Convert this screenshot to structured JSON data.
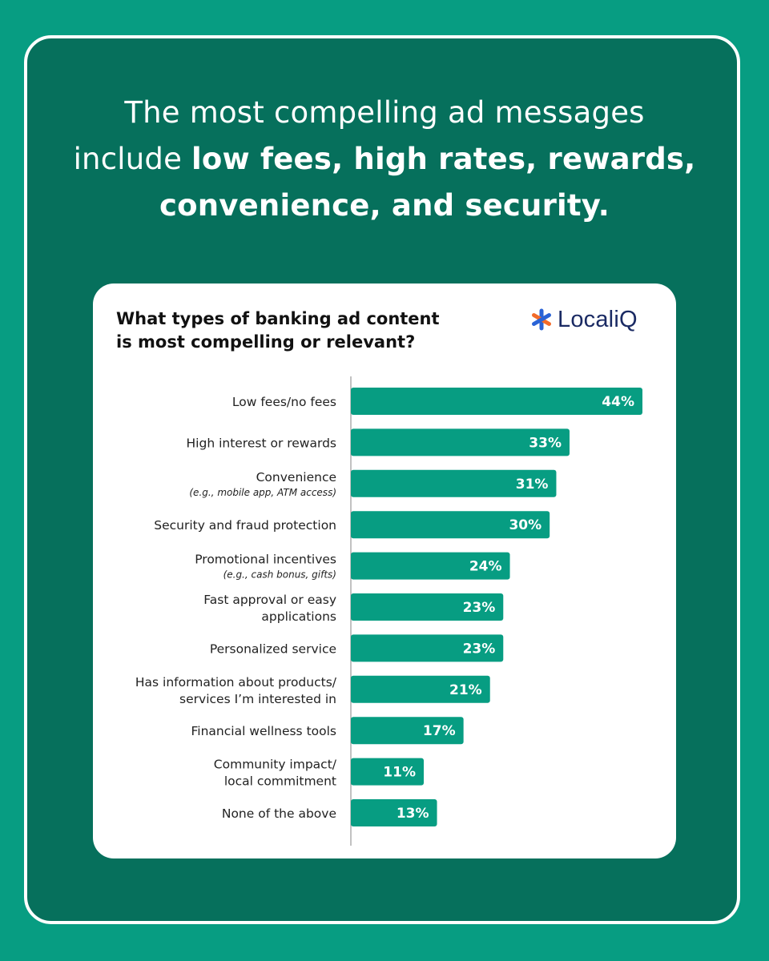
{
  "headline": {
    "line1": "The most compelling ad messages",
    "line2_prefix": "include ",
    "line2_bold": "low fees, high rates, rewards,",
    "line3_bold": "convenience, and security."
  },
  "brand": {
    "name": "LocaliQ",
    "icon": "asterisk-logo-icon"
  },
  "colors": {
    "background": "#079d82",
    "panel": "#06705c",
    "bar": "#079d82",
    "logo_orange": "#f26b2a",
    "logo_blue": "#2a63d6",
    "brand_text": "#1a2a63"
  },
  "chart_data": {
    "type": "bar",
    "orientation": "horizontal",
    "title_lines": [
      "What types of banking ad content",
      "is most compelling or relevant?"
    ],
    "categories": [
      [
        "Low fees/no fees"
      ],
      [
        "High interest or rewards"
      ],
      [
        "Convenience"
      ],
      [
        "Security and fraud protection"
      ],
      [
        "Promotional incentives"
      ],
      [
        "Fast approval or easy",
        "applications"
      ],
      [
        "Personalized service"
      ],
      [
        "Has information about products/",
        "services I’m interested in"
      ],
      [
        "Financial wellness tools"
      ],
      [
        "Community impact/",
        "local commitment"
      ],
      [
        "None of the above"
      ]
    ],
    "subnotes": [
      "",
      "",
      "(e.g., mobile app, ATM access)",
      "",
      "(e.g., cash bonus, gifts)",
      "",
      "",
      "",
      "",
      "",
      ""
    ],
    "values": [
      44,
      33,
      31,
      30,
      24,
      23,
      23,
      21,
      17,
      11,
      13
    ],
    "value_labels": [
      "44%",
      "33%",
      "31%",
      "30%",
      "24%",
      "23%",
      "23%",
      "21%",
      "17%",
      "11%",
      "13%"
    ],
    "unit": "%",
    "xlim": [
      0,
      44
    ],
    "grid": false,
    "legend": "none"
  }
}
